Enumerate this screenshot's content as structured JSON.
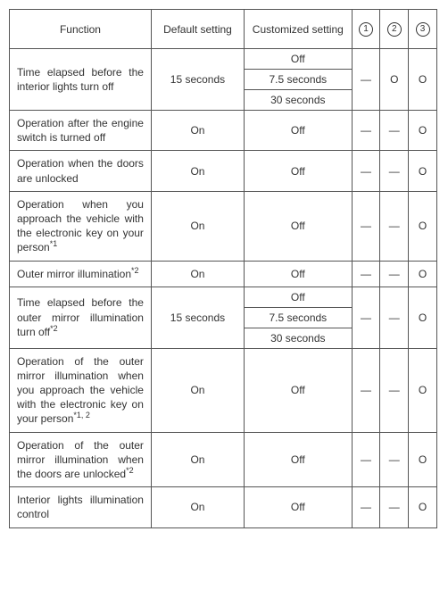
{
  "headers": {
    "function": "Function",
    "default": "Default setting",
    "custom": "Customized setting",
    "c1": "1",
    "c2": "2",
    "c3": "3"
  },
  "rows": [
    {
      "function_html": "Time elapsed before the interior lights turn off",
      "default": "15 seconds",
      "custom": [
        "Off",
        "7.5 seconds",
        "30 seconds"
      ],
      "c1": "—",
      "c2": "O",
      "c3": "O"
    },
    {
      "function_html": "Operation after the engine switch is turned off",
      "default": "On",
      "custom": [
        "Off"
      ],
      "c1": "—",
      "c2": "—",
      "c3": "O"
    },
    {
      "function_html": "Operation when the doors are unlocked",
      "default": "On",
      "custom": [
        "Off"
      ],
      "c1": "—",
      "c2": "—",
      "c3": "O"
    },
    {
      "function_html": "Operation when you approach the vehicle with the electronic key on your person<sup>*1</sup>",
      "default": "On",
      "custom": [
        "Off"
      ],
      "c1": "—",
      "c2": "—",
      "c3": "O"
    },
    {
      "function_html": "Outer mirror illumina&shy;tion<sup>*2</sup>",
      "default": "On",
      "custom": [
        "Off"
      ],
      "c1": "—",
      "c2": "—",
      "c3": "O"
    },
    {
      "function_html": "Time elapsed before the outer mirror illumi&shy;nation turn off<sup>*2</sup>",
      "default": "15 seconds",
      "custom": [
        "Off",
        "7.5 seconds",
        "30 seconds"
      ],
      "c1": "—",
      "c2": "—",
      "c3": "O"
    },
    {
      "function_html": "Operation of the outer mirror illumination when you approach the vehicle with the electronic key on your person<sup>*1, 2</sup>",
      "default": "On",
      "custom": [
        "Off"
      ],
      "c1": "—",
      "c2": "—",
      "c3": "O"
    },
    {
      "function_html": "Operation of the outer mirror illumination when the doors are unlocked<sup>*2</sup>",
      "default": "On",
      "custom": [
        "Off"
      ],
      "c1": "—",
      "c2": "—",
      "c3": "O"
    },
    {
      "function_html": "Interior lights illumina&shy;tion control",
      "default": "On",
      "custom": [
        "Off"
      ],
      "c1": "—",
      "c2": "—",
      "c3": "O"
    }
  ]
}
